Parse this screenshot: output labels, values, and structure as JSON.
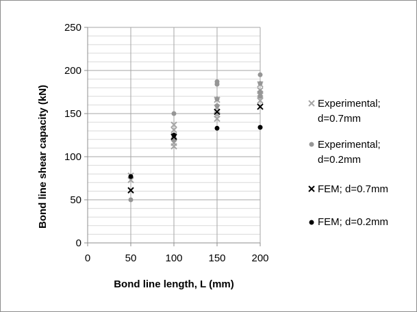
{
  "chart_data": {
    "type": "scatter",
    "title": "",
    "xlabel": "Bond line length, L (mm)",
    "ylabel": "Bond line shear capacity (kN)",
    "xlim": [
      0,
      200
    ],
    "ylim": [
      0,
      250
    ],
    "x_ticks": [
      "0",
      "50",
      "100",
      "150",
      "200"
    ],
    "y_ticks": [
      "0",
      "50",
      "100",
      "150",
      "200",
      "250"
    ],
    "y_major_step": 50,
    "y_minor_step": 10,
    "grid": true,
    "legend_position": "right",
    "series": [
      {
        "name": "Experimental; d=0.7mm",
        "marker": "x",
        "color": "#a6a6a6",
        "points": [
          [
            50,
            78
          ],
          [
            50,
            73
          ],
          [
            100,
            137
          ],
          [
            100,
            131
          ],
          [
            100,
            124
          ],
          [
            100,
            116
          ],
          [
            100,
            112
          ],
          [
            150,
            166
          ],
          [
            150,
            157
          ],
          [
            150,
            149
          ],
          [
            150,
            144
          ],
          [
            200,
            184
          ],
          [
            200,
            177
          ],
          [
            200,
            173
          ],
          [
            200,
            171
          ],
          [
            200,
            165
          ]
        ]
      },
      {
        "name": "Experimental; d=0.2mm",
        "marker": "dot",
        "color": "#969696",
        "points": [
          [
            50,
            50
          ],
          [
            100,
            150
          ],
          [
            100,
            122
          ],
          [
            100,
            119
          ],
          [
            150,
            187
          ],
          [
            150,
            184
          ],
          [
            150,
            167
          ],
          [
            150,
            159
          ],
          [
            200,
            195
          ],
          [
            200,
            185
          ],
          [
            200,
            175
          ],
          [
            200,
            170
          ]
        ]
      },
      {
        "name": "FEM; d=0.7mm",
        "marker": "x",
        "color": "#000000",
        "points": [
          [
            50,
            61
          ],
          [
            100,
            123
          ],
          [
            150,
            152
          ],
          [
            200,
            158
          ]
        ]
      },
      {
        "name": "FEM; d=0.2mm",
        "marker": "dot",
        "color": "#000000",
        "points": [
          [
            50,
            77
          ],
          [
            100,
            125
          ],
          [
            150,
            133
          ],
          [
            200,
            134
          ]
        ]
      }
    ]
  },
  "legend": {
    "items": [
      {
        "line1": "Experimental;",
        "line2": "d=0.7mm"
      },
      {
        "line1": "Experimental;",
        "line2": "d=0.2mm"
      },
      {
        "line1": "FEM; d=0.7mm",
        "line2": ""
      },
      {
        "line1": "FEM; d=0.2mm",
        "line2": ""
      }
    ]
  }
}
